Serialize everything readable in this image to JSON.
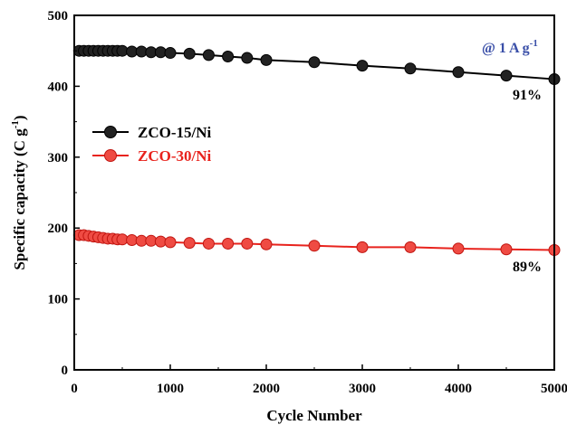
{
  "chart_data": {
    "type": "line",
    "xlabel": "Cycle Number",
    "ylabel": "Specific capacity (C g",
    "ylabel_sup": "-1",
    "ylabel_close": ")",
    "xlim": [
      0,
      5000
    ],
    "ylim": [
      0,
      500
    ],
    "x_ticks": [
      "0",
      "1000",
      "2000",
      "3000",
      "4000",
      "5000"
    ],
    "y_ticks": [
      "0",
      "100",
      "200",
      "300",
      "400",
      "500"
    ],
    "grid": false,
    "legend_position": "middle-left",
    "condition_label": "@ 1 A g",
    "condition_sup": "-1",
    "series": [
      {
        "name": "ZCO-15/Ni",
        "color": "#000000",
        "x": [
          50,
          100,
          150,
          200,
          250,
          300,
          350,
          400,
          450,
          500,
          600,
          700,
          800,
          900,
          1000,
          1200,
          1400,
          1600,
          1800,
          2000,
          2500,
          3000,
          3500,
          4000,
          4500,
          5000
        ],
        "y": [
          450,
          450,
          450,
          450,
          450,
          450,
          450,
          450,
          450,
          450,
          449,
          449,
          448,
          448,
          447,
          446,
          444,
          442,
          440,
          437,
          434,
          429,
          425,
          420,
          415,
          410
        ],
        "retention_label": "91%"
      },
      {
        "name": "ZCO-30/Ni",
        "color": "#e8231d",
        "x": [
          50,
          100,
          150,
          200,
          250,
          300,
          350,
          400,
          450,
          500,
          600,
          700,
          800,
          900,
          1000,
          1200,
          1400,
          1600,
          1800,
          2000,
          2500,
          3000,
          3500,
          4000,
          4500,
          5000
        ],
        "y": [
          190,
          190,
          189,
          188,
          187,
          186,
          185,
          185,
          184,
          184,
          183,
          182,
          182,
          181,
          180,
          179,
          178,
          178,
          178,
          177,
          175,
          173,
          173,
          171,
          170,
          169
        ],
        "retention_label": "89%"
      }
    ]
  }
}
